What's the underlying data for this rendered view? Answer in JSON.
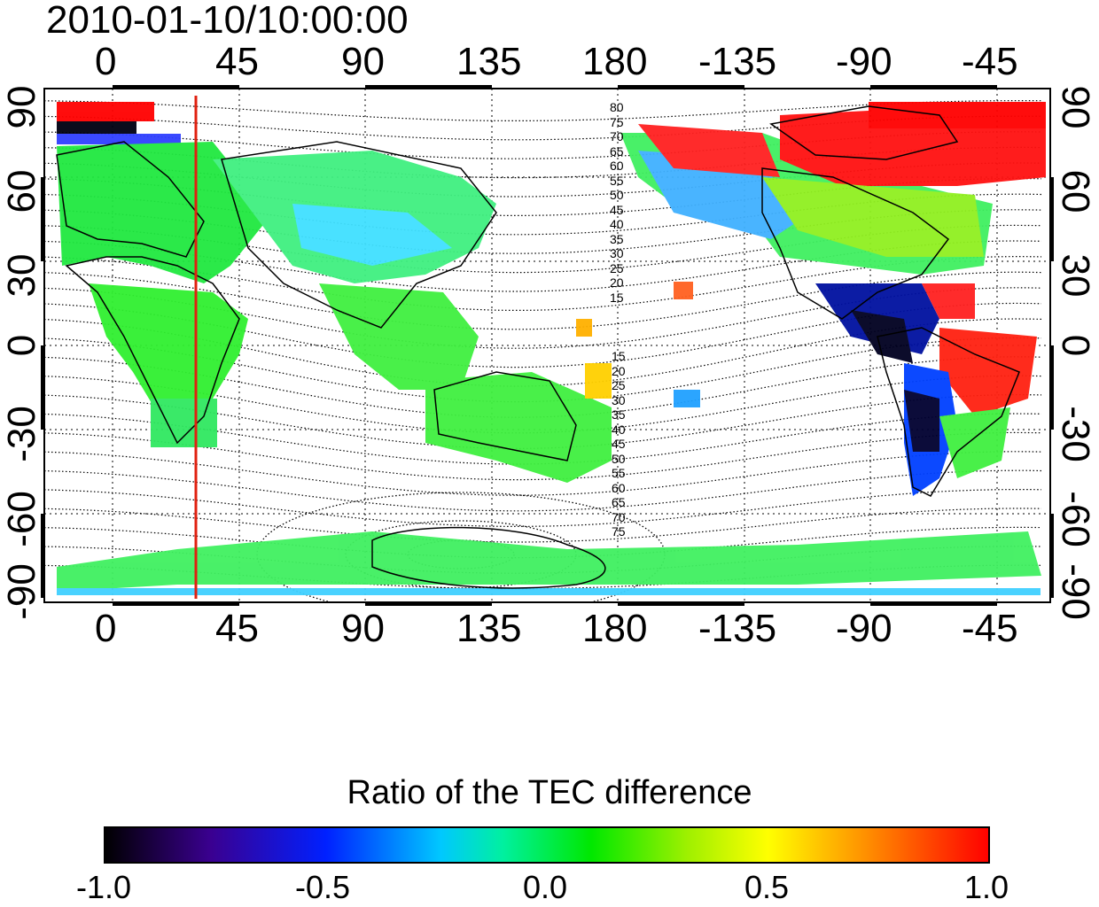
{
  "title": "2010-01-10/10:00:00",
  "top_axis_labels": [
    "0",
    "45",
    "90",
    "135",
    "180",
    "-135",
    "-90",
    "-45"
  ],
  "bottom_axis_labels": [
    "0",
    "45",
    "90",
    "135",
    "180",
    "-135",
    "-90",
    "-45"
  ],
  "left_axis_labels": [
    "90",
    "60",
    "30",
    "0",
    "-30",
    "-60",
    "-90"
  ],
  "right_axis_labels": [
    "90",
    "60",
    "30",
    "0",
    "-30",
    "-60",
    "-90"
  ],
  "dip_labels_north": [
    "80",
    "75",
    "70",
    "65",
    "60",
    "55",
    "50",
    "45",
    "40",
    "35",
    "30",
    "25",
    "20",
    "15"
  ],
  "dip_labels_south": [
    "15",
    "20",
    "25",
    "30",
    "35",
    "40",
    "45",
    "50",
    "55",
    "60",
    "65",
    "70",
    "75"
  ],
  "meridian_line": {
    "color": "#e02010"
  },
  "colorbar": {
    "title": "Ratio of the TEC difference",
    "tick_labels": [
      "-1.0",
      "-0.5",
      "0.0",
      "0.5",
      "1.0"
    ],
    "colors": [
      "#000000",
      "#3a0090",
      "#0020ff",
      "#00d8ff",
      "#00f0a0",
      "#00f000",
      "#a0f000",
      "#ffff00",
      "#ff9000",
      "#ff0000"
    ]
  }
}
